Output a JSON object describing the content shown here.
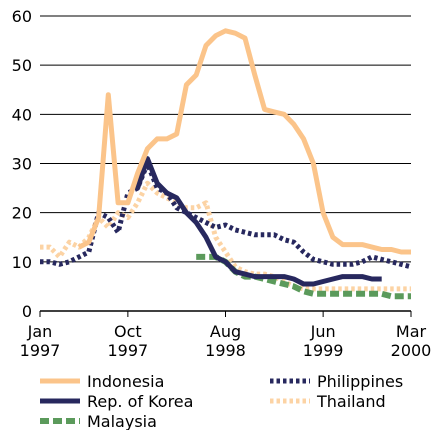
{
  "chart_data": {
    "type": "line",
    "x": [
      "1997-01",
      "1997-02",
      "1997-03",
      "1997-04",
      "1997-05",
      "1997-06",
      "1997-07",
      "1997-08",
      "1997-09",
      "1997-10",
      "1997-11",
      "1997-12",
      "1998-01",
      "1998-02",
      "1998-03",
      "1998-04",
      "1998-05",
      "1998-06",
      "1998-07",
      "1998-08",
      "1998-09",
      "1998-10",
      "1998-11",
      "1998-12",
      "1999-01",
      "1999-02",
      "1999-03",
      "1999-04",
      "1999-05",
      "1999-06",
      "1999-07",
      "1999-08",
      "1999-09",
      "1999-10",
      "1999-11",
      "1999-12",
      "2000-01",
      "2000-02",
      "2000-03"
    ],
    "xticks": [
      {
        "value": "1997-01",
        "label": "Jan 1997"
      },
      {
        "value": "1997-10",
        "label": "Oct 1997"
      },
      {
        "value": "1998-08",
        "label": "Aug 1998"
      },
      {
        "value": "1999-06",
        "label": "Jun 1999"
      },
      {
        "value": "2000-03",
        "label": "Mar 2000"
      }
    ],
    "ylim": [
      0,
      60
    ],
    "yticks": [
      0,
      10,
      20,
      30,
      40,
      50,
      60
    ],
    "grid": true,
    "series": [
      {
        "name": "Indonesia",
        "color": "#fbc48a",
        "style": "solid",
        "values": [
          null,
          null,
          null,
          null,
          13,
          14,
          19,
          44,
          22,
          22,
          28,
          33,
          35,
          35,
          36,
          46,
          48,
          54,
          56,
          57,
          56.5,
          55.5,
          48,
          41,
          40.5,
          40,
          38,
          35,
          30,
          20,
          15,
          13.5,
          13.5,
          13.5,
          13,
          12.5,
          12.5,
          12,
          12
        ]
      },
      {
        "name": "Rep. of Korea",
        "color": "#27285e",
        "style": "solid",
        "values": [
          null,
          null,
          null,
          null,
          null,
          null,
          null,
          null,
          null,
          null,
          25,
          31,
          26,
          24,
          23,
          20,
          18,
          15,
          11,
          10,
          8,
          7.5,
          7,
          7,
          7,
          7,
          6.5,
          5.5,
          5.5,
          6,
          6.5,
          7,
          7,
          7,
          6.5,
          6.5,
          null,
          null,
          null
        ]
      },
      {
        "name": "Malaysia",
        "color": "#5b9a5b",
        "style": "dashed",
        "values": [
          null,
          null,
          null,
          null,
          null,
          null,
          null,
          null,
          null,
          null,
          null,
          null,
          null,
          null,
          null,
          null,
          11,
          11,
          11,
          10,
          8,
          7,
          7,
          6.5,
          6,
          5.5,
          5,
          4,
          3.5,
          3.5,
          3.5,
          3.5,
          3.5,
          3.5,
          3.5,
          3.5,
          3,
          3,
          3
        ]
      },
      {
        "name": "Philippines",
        "color": "#27285e",
        "style": "dotted",
        "values": [
          10,
          10,
          9.5,
          10,
          11,
          12,
          20,
          19,
          16,
          24,
          25,
          30,
          25,
          24,
          21,
          20,
          19,
          18,
          17,
          17.5,
          16.5,
          16,
          15.5,
          15.5,
          15.5,
          14.5,
          14,
          12,
          10.5,
          10,
          9.5,
          9.5,
          9.5,
          10,
          11,
          10.5,
          10,
          9.5,
          9
        ]
      },
      {
        "name": "Thailand",
        "color": "#fcd3a4",
        "style": "dotted",
        "values": [
          13,
          13,
          11,
          14,
          13,
          15,
          19,
          17,
          20,
          19,
          22,
          26,
          24,
          23,
          22,
          21,
          21,
          22,
          15,
          12,
          9,
          8,
          7.5,
          7.5,
          7,
          6,
          5,
          4.5,
          4.5,
          4.5,
          4.5,
          4.5,
          4.5,
          4.5,
          4.5,
          4.5,
          4.5,
          4.5,
          4.5
        ]
      }
    ]
  }
}
